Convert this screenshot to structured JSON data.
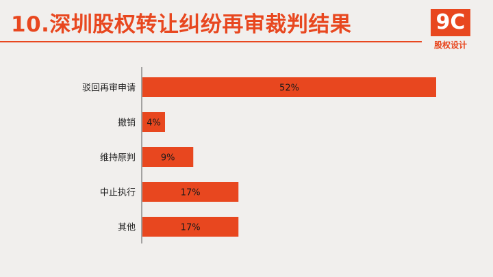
{
  "header": {
    "title": "10.深圳股权转让纠纷再审裁判结果",
    "logo_text": "9C",
    "logo_subtitle": "股权设计"
  },
  "colors": {
    "accent": "#e8471f",
    "background": "#f1efed",
    "axis": "#555555",
    "text": "#222222"
  },
  "chart_data": {
    "type": "bar",
    "orientation": "horizontal",
    "categories": [
      "驳回再审申请",
      "撤销",
      "维持原判",
      "中止执行",
      "其他"
    ],
    "values": [
      52,
      4,
      9,
      17,
      17
    ],
    "value_labels": [
      "52%",
      "4%",
      "9%",
      "17%",
      "17%"
    ],
    "title": "",
    "xlabel": "",
    "ylabel": "",
    "xlim": [
      0,
      52
    ],
    "grid": false,
    "legend": "none"
  }
}
